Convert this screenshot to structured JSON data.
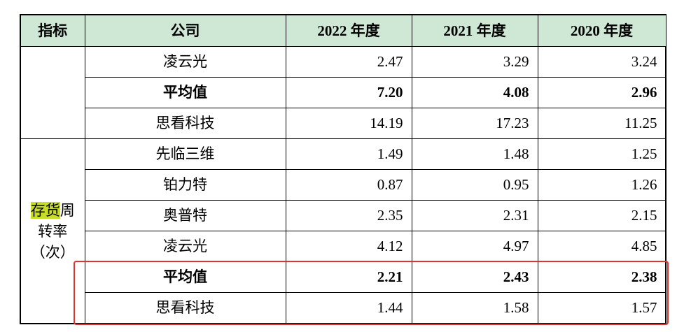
{
  "header": {
    "indicator": "指标",
    "company": "公司",
    "y2022": "2022 年度",
    "y2021": "2021 年度",
    "y2020": "2020 年度"
  },
  "group1": {
    "indicator": "",
    "rows": [
      {
        "company": "凌云光",
        "v2022": "2.47",
        "v2021": "3.29",
        "v2020": "3.24"
      },
      {
        "company": "平均值",
        "v2022": "7.20",
        "v2021": "4.08",
        "v2020": "2.96"
      },
      {
        "company": "思看科技",
        "v2022": "14.19",
        "v2021": "17.23",
        "v2020": "11.25"
      }
    ]
  },
  "group2": {
    "indicator_highlight": "存货",
    "indicator_rest1": "周",
    "indicator_line2": "转率",
    "indicator_line3": "（次）",
    "rows": [
      {
        "company": "先临三维",
        "v2022": "1.49",
        "v2021": "1.48",
        "v2020": "1.25"
      },
      {
        "company": "铂力特",
        "v2022": "0.87",
        "v2021": "0.95",
        "v2020": "1.26"
      },
      {
        "company": "奥普特",
        "v2022": "2.35",
        "v2021": "2.31",
        "v2020": "2.15"
      },
      {
        "company": "凌云光",
        "v2022": "4.12",
        "v2021": "4.97",
        "v2020": "4.85"
      },
      {
        "company": "平均值",
        "v2022": "2.21",
        "v2021": "2.43",
        "v2020": "2.38"
      },
      {
        "company": "思看科技",
        "v2022": "1.44",
        "v2021": "1.58",
        "v2020": "1.57"
      }
    ]
  },
  "colors": {
    "header_bg": "#cfe8d5",
    "highlight": "#c8dc2a",
    "annotation_box": "#e0332f"
  }
}
